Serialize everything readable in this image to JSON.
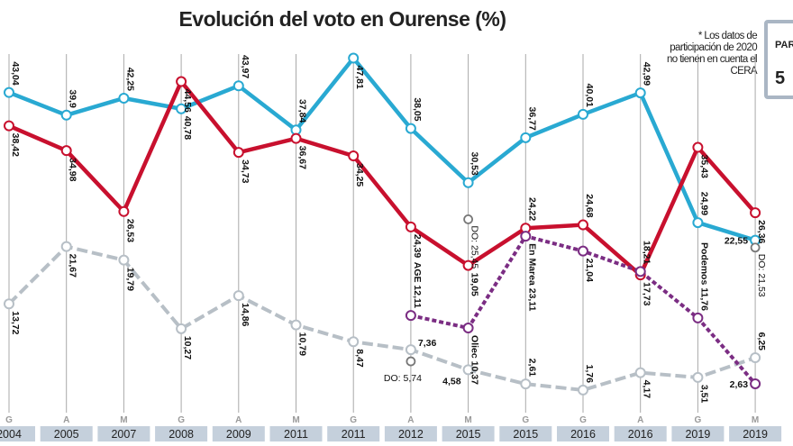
{
  "title": "Evolución del voto en Ourense (%)",
  "note": "* Los datos de participación de 2020 no tienen en cuenta el CERA",
  "participation_box": {
    "label": "PAR",
    "value": "5"
  },
  "chart_data": {
    "type": "line",
    "title": "Evolución del voto en Ourense (%)",
    "categories": [
      {
        "type": "G",
        "year": "2004"
      },
      {
        "type": "A",
        "year": "2005"
      },
      {
        "type": "M",
        "year": "2007"
      },
      {
        "type": "G",
        "year": "2008"
      },
      {
        "type": "A",
        "year": "2009"
      },
      {
        "type": "M",
        "year": "2011"
      },
      {
        "type": "G",
        "year": "2011"
      },
      {
        "type": "A",
        "year": "2012"
      },
      {
        "type": "M",
        "year": "2015"
      },
      {
        "type": "G",
        "year": "2015"
      },
      {
        "type": "G",
        "year": "2016"
      },
      {
        "type": "A",
        "year": "2016"
      },
      {
        "type": "G",
        "year": "2019"
      },
      {
        "type": "M",
        "year": "2019"
      }
    ],
    "ylim": [
      0,
      50
    ],
    "grid": "vertical lines at each election",
    "series": [
      {
        "color": "#29a9d2",
        "dash": false,
        "values": [
          43.04,
          39.9,
          42.25,
          40.78,
          43.97,
          37.84,
          47.81,
          38.05,
          30.53,
          36.77,
          40.01,
          42.99,
          24.99,
          22.55
        ],
        "labels": [
          "43,04",
          "39,9",
          "42,25",
          "40,78",
          "43,97",
          "37,84",
          "47,81",
          "38,05",
          "30,53",
          "36,77",
          "40,01",
          "42,99",
          "24,99",
          "22,55"
        ]
      },
      {
        "color": "#c8102e",
        "dash": false,
        "values": [
          38.42,
          34.98,
          26.53,
          44.56,
          34.73,
          36.67,
          34.25,
          24.39,
          19.05,
          24.22,
          24.68,
          17.73,
          35.43,
          26.36
        ],
        "labels": [
          "38,42",
          "34,98",
          "26,53",
          "44,56",
          "34,73",
          "36,67",
          "34,25",
          "24,39",
          "19,05",
          "24,22",
          "24,68",
          "17,73",
          "35,43",
          "26,36"
        ]
      },
      {
        "color": "#b7bfc6",
        "dash": true,
        "values": [
          13.72,
          21.67,
          19.79,
          10.27,
          14.86,
          10.79,
          8.47,
          7.36,
          4.58,
          2.61,
          1.76,
          4.17,
          3.51,
          6.25
        ],
        "labels": [
          "13,72",
          "21,67",
          "19,79",
          "10,27",
          "14,86",
          "10,79",
          "8,47",
          "7,36",
          "4,58",
          "2,61",
          "1,76",
          "4,17",
          "3,51",
          "6,25"
        ]
      },
      {
        "color": "#7b2d83",
        "dash": true,
        "values": [
          null,
          null,
          null,
          null,
          null,
          null,
          null,
          12.11,
          10.37,
          23.11,
          21.04,
          18.21,
          11.76,
          2.63
        ],
        "labels": [
          null,
          null,
          null,
          null,
          null,
          null,
          null,
          "AGE 12,11",
          "Oliec 10,37",
          "En Marea 23,11",
          "21,04",
          "18,21",
          "Podemos 11,76",
          "2,63"
        ]
      }
    ],
    "extra_points": [
      {
        "category_index": 7,
        "value": 5.74,
        "label": "DO: 5,74"
      },
      {
        "category_index": 8,
        "value": 25.45,
        "label": "DO: 25,45"
      },
      {
        "category_index": 13,
        "value": 21.53,
        "label": "DO: 21,53"
      }
    ]
  }
}
